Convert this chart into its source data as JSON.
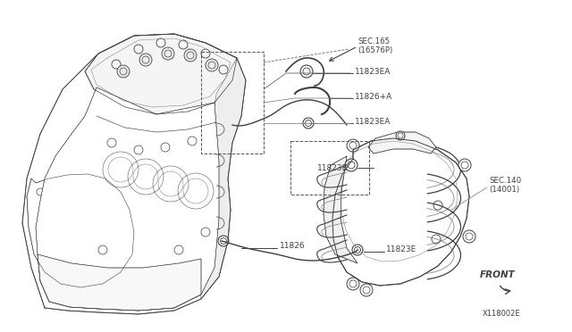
{
  "background_color": "#ffffff",
  "line_color": "#404040",
  "label_color": "#404040",
  "fig_width": 6.4,
  "fig_height": 3.72,
  "dpi": 100,
  "labels": {
    "sec165": "SEC.165\n(16576P)",
    "part1": "11823EA",
    "part2": "11826+A",
    "part3": "11823EA",
    "part4": "11823E",
    "part5": "11826",
    "part6": "11823E",
    "sec140": "SEC.140\n(14001)",
    "front": "FRONT",
    "diagram_id": "X118002E"
  }
}
